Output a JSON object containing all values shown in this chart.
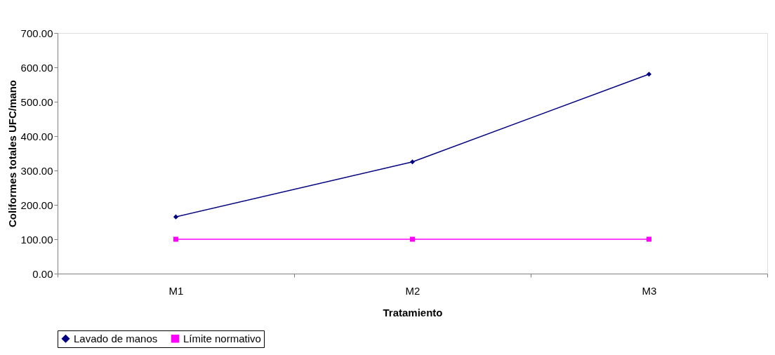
{
  "chart_data": {
    "type": "line",
    "xlabel": "Tratamiento",
    "ylabel": "Coliformes totales UFC/mano",
    "categories": [
      "M1",
      "M2",
      "M3"
    ],
    "series": [
      {
        "name": "Lavado de manos",
        "color": "#000080",
        "values": [
          165,
          325,
          580
        ],
        "marker": "diamond"
      },
      {
        "name": "Límite normativo",
        "color": "#ff00ff",
        "values": [
          100,
          100,
          100
        ],
        "marker": "square"
      }
    ],
    "ylim": [
      0,
      700
    ],
    "yticks": [
      {
        "value": 0,
        "label": "0.00"
      },
      {
        "value": 100,
        "label": "100.00"
      },
      {
        "value": 200,
        "label": "200.00"
      },
      {
        "value": 300,
        "label": "300.00"
      },
      {
        "value": 400,
        "label": "400.00"
      },
      {
        "value": 500,
        "label": "500.00"
      },
      {
        "value": 600,
        "label": "600.00"
      },
      {
        "value": 700,
        "label": "700.00"
      }
    ],
    "grid": false,
    "legend": "bottom",
    "line_style": "solid"
  }
}
